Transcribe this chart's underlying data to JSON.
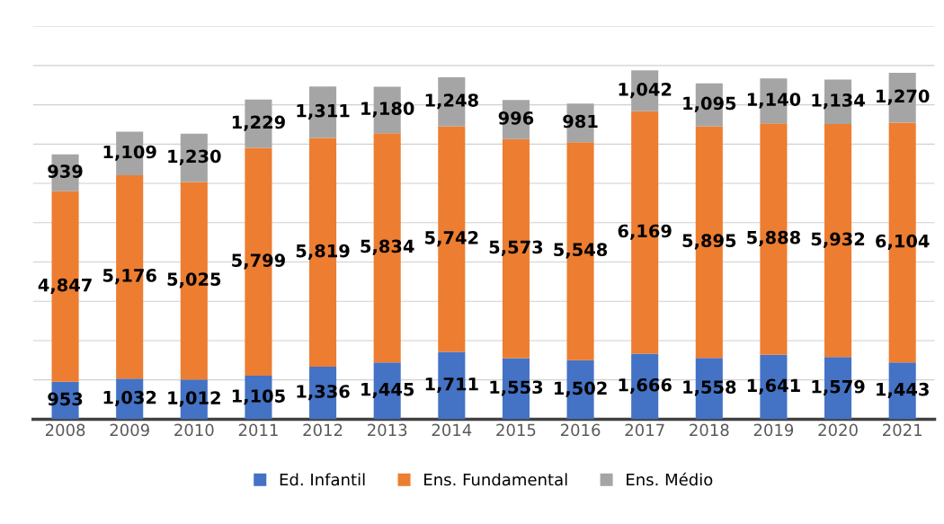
{
  "chart_data": {
    "type": "bar",
    "stacked": true,
    "categories": [
      "2008",
      "2009",
      "2010",
      "2011",
      "2012",
      "2013",
      "2014",
      "2015",
      "2016",
      "2017",
      "2018",
      "2019",
      "2020",
      "2021"
    ],
    "series": [
      {
        "name": "Ed. Infantil",
        "color": "#4472c4",
        "values": [
          953,
          1032,
          1012,
          1105,
          1336,
          1445,
          1711,
          1553,
          1502,
          1666,
          1558,
          1641,
          1579,
          1443
        ],
        "value_labels": [
          "953",
          "1,032",
          "1,012",
          "1,105",
          "1,336",
          "1,445",
          "1,711",
          "1,553",
          "1,502",
          "1,666",
          "1,558",
          "1,641",
          "1,579",
          "1,443"
        ]
      },
      {
        "name": "Ens. Fundamental",
        "color": "#ed7d31",
        "values": [
          4847,
          5176,
          5025,
          5799,
          5819,
          5834,
          5742,
          5573,
          5548,
          6169,
          5895,
          5888,
          5932,
          6104
        ],
        "value_labels": [
          "4,847",
          "5,176",
          "5,025",
          "5,799",
          "5,819",
          "5,834",
          "5,742",
          "5,573",
          "5,548",
          "6,169",
          "5,895",
          "5,888",
          "5,932",
          "6,104"
        ]
      },
      {
        "name": "Ens. Médio",
        "color": "#a5a5a5",
        "values": [
          939,
          1109,
          1230,
          1229,
          1311,
          1180,
          1248,
          996,
          981,
          1042,
          1095,
          1140,
          1134,
          1270
        ],
        "value_labels": [
          "939",
          "1,109",
          "1,230",
          "1,229",
          "1,311",
          "1,180",
          "1,248",
          "996",
          "981",
          "1,042",
          "1,095",
          "1,140",
          "1,134",
          "1,270"
        ]
      }
    ],
    "ylim": [
      0,
      10000
    ],
    "yticks": [
      {
        "value": 0,
        "label": null
      },
      {
        "value": 1000,
        "label": null
      },
      {
        "value": 2000,
        "label": null
      },
      {
        "value": 3000,
        "label": null
      },
      {
        "value": 4000,
        "label": null
      },
      {
        "value": 5000,
        "label": null
      },
      {
        "value": 6000,
        "label": null
      },
      {
        "value": 7000,
        "label": null
      },
      {
        "value": 8000,
        "label": null
      },
      {
        "value": 9000,
        "label": null
      },
      {
        "value": 10000,
        "label": null
      }
    ],
    "grid": "y",
    "legend": "bottom",
    "tick_labels": "x"
  }
}
